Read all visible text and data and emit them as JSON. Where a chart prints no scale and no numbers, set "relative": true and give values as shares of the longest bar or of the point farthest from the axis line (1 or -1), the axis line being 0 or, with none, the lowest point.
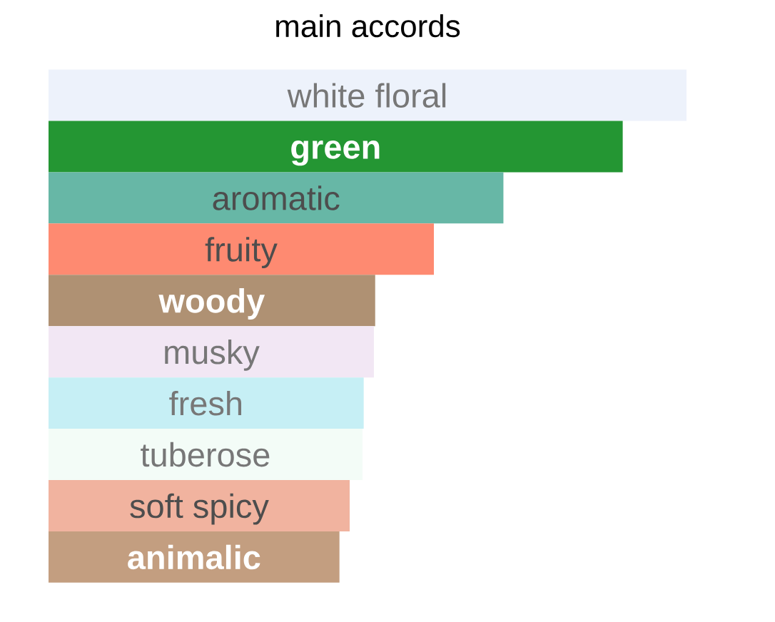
{
  "chart_data": {
    "type": "bar",
    "orientation": "horizontal",
    "relative": true,
    "title": "main accords",
    "categories": [
      "white floral",
      "green",
      "aromatic",
      "fruity",
      "woody",
      "musky",
      "fresh",
      "tuberose",
      "soft spicy",
      "animalic"
    ],
    "values": [
      1,
      0.9,
      0.713,
      0.604,
      0.512,
      0.51,
      0.494,
      0.492,
      0.472,
      0.456
    ],
    "colors": [
      "#edf2fb",
      "#249633",
      "#67b7a6",
      "#fe8a71",
      "#af9173",
      "#f2e7f4",
      "#c6eff5",
      "#f3fcf7",
      "#f1b39f",
      "#c39e80"
    ]
  }
}
